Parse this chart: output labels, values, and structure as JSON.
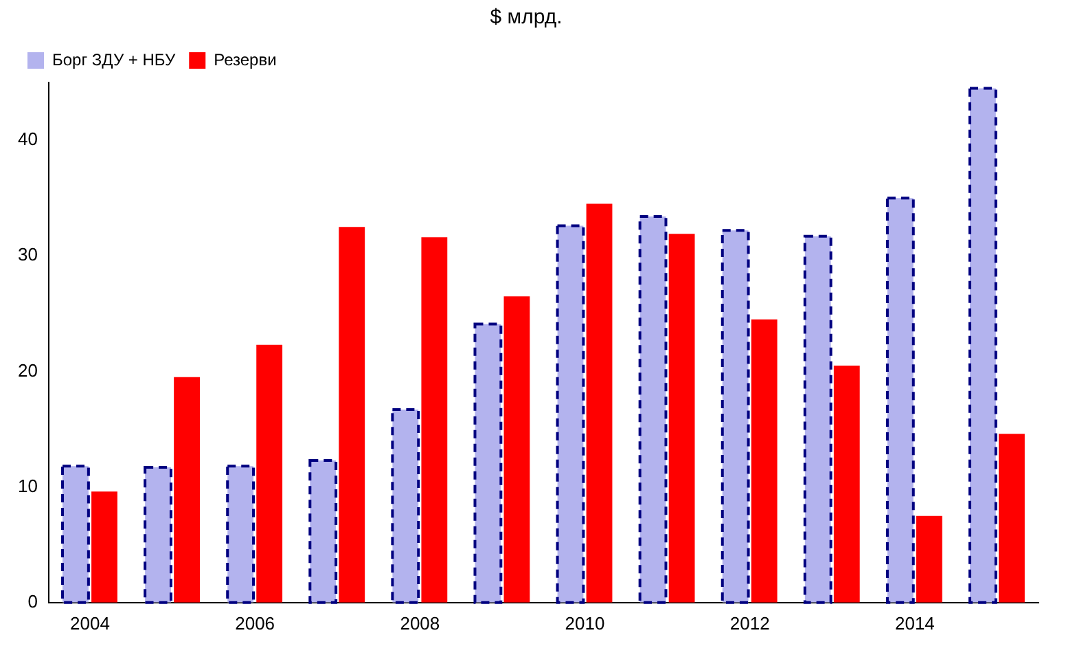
{
  "chart_data": {
    "type": "bar",
    "title": "$ млрд.",
    "categories": [
      "2004",
      null,
      "2006",
      null,
      "2008",
      null,
      "2010",
      null,
      "2012",
      null,
      "2014",
      null
    ],
    "series": [
      {
        "name": "Борг ЗДУ + НБУ",
        "color": "#b3b3ee",
        "values": [
          11.8,
          11.7,
          11.8,
          12.3,
          16.7,
          24.1,
          32.6,
          33.4,
          32.2,
          31.7,
          35.0,
          44.5
        ]
      },
      {
        "name": "Резерви",
        "color": "#ff0000",
        "values": [
          9.6,
          19.5,
          22.3,
          32.5,
          31.6,
          26.5,
          34.5,
          31.9,
          24.5,
          20.5,
          7.5,
          14.6
        ]
      }
    ],
    "ylim": [
      0,
      45
    ],
    "yticks": [
      0,
      10,
      20,
      30,
      40
    ],
    "grid": false,
    "legend": "top left"
  }
}
